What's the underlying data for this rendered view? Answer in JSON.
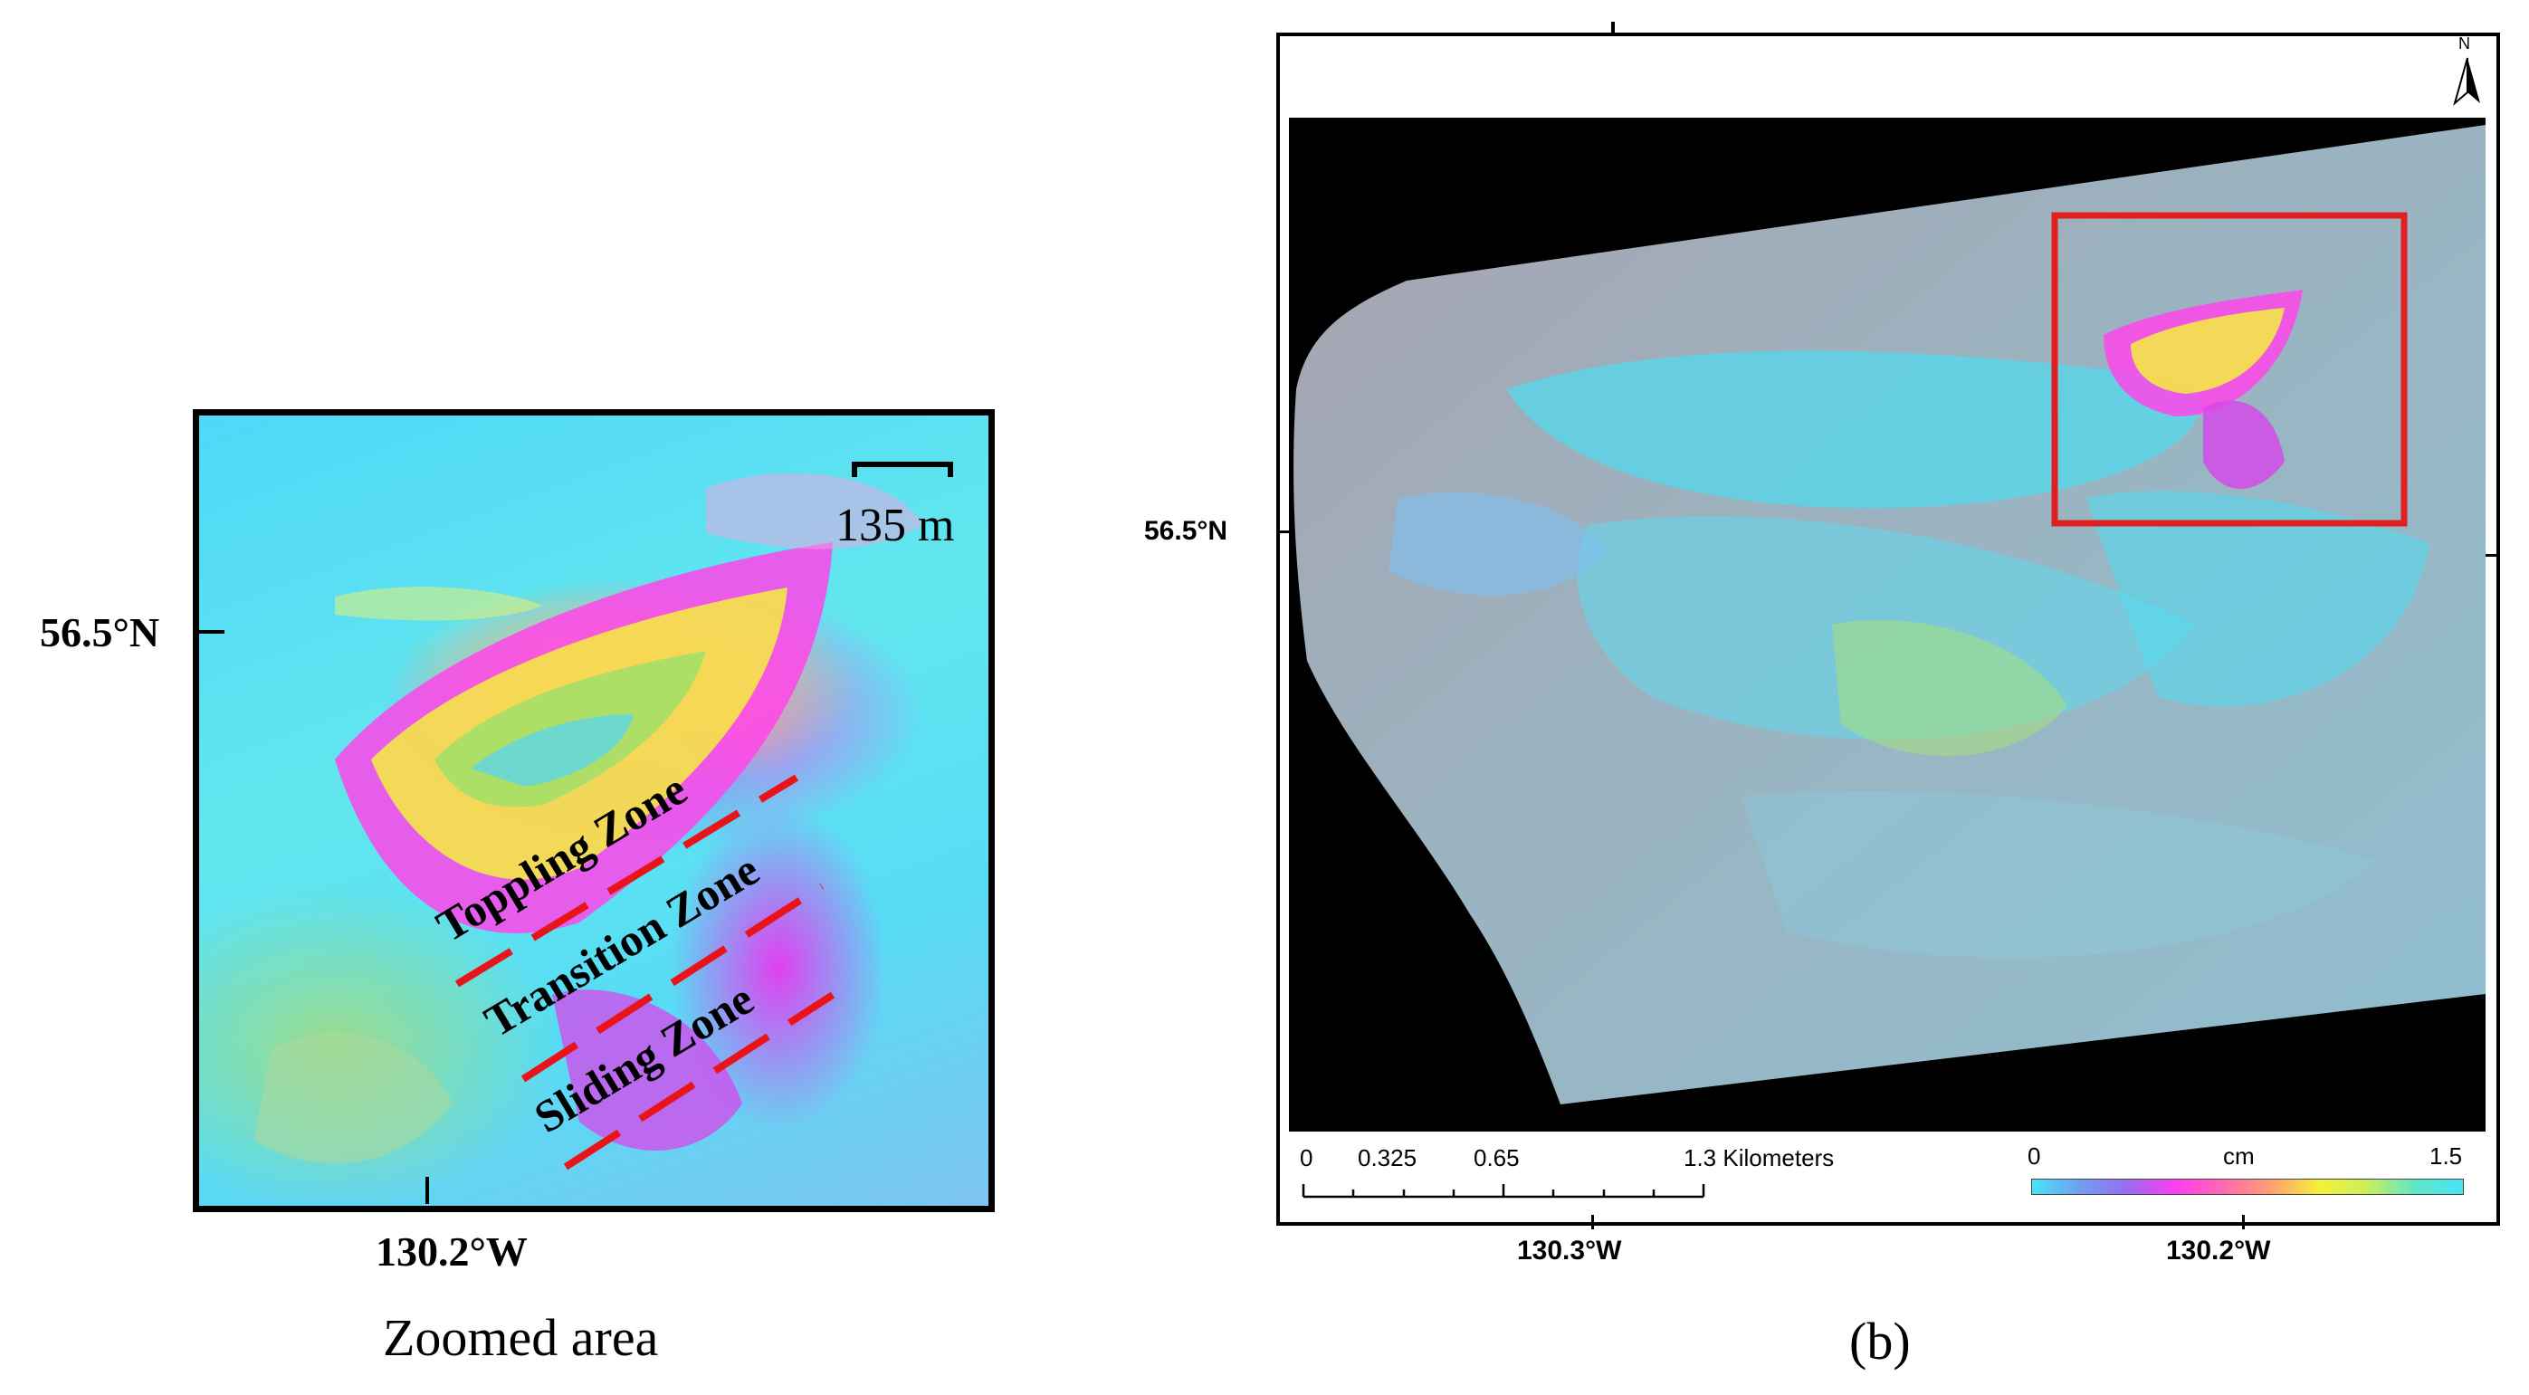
{
  "left_panel": {
    "scale_bar_label": "135 m",
    "lat_label": "56.5°N",
    "lon_label": "130.2°W",
    "caption": "Zoomed area",
    "zones": [
      "Toppling Zone",
      "Transition Zone",
      "Sliding Zone"
    ],
    "zone_line_color": "#e8141a"
  },
  "right_panel": {
    "caption": "(b)",
    "lat_label": "56.5°N",
    "lon_labels": [
      "130.3°W",
      "130.2°W"
    ],
    "north_label": "N",
    "inset_box_color": "#e02020",
    "distance_scale": {
      "ticks": [
        "0",
        "0.325",
        "0.65",
        "1.3 Kilometers"
      ]
    },
    "color_legend": {
      "min": "0",
      "unit": "cm",
      "max": "1.5",
      "colors": [
        "#49e3f6",
        "#6fa0f2",
        "#9a6cf0",
        "#ff3cf0",
        "#ff6ab0",
        "#ffa070",
        "#f7ef3a",
        "#c8ef5a",
        "#5ee6c8",
        "#49e3f6"
      ]
    }
  }
}
